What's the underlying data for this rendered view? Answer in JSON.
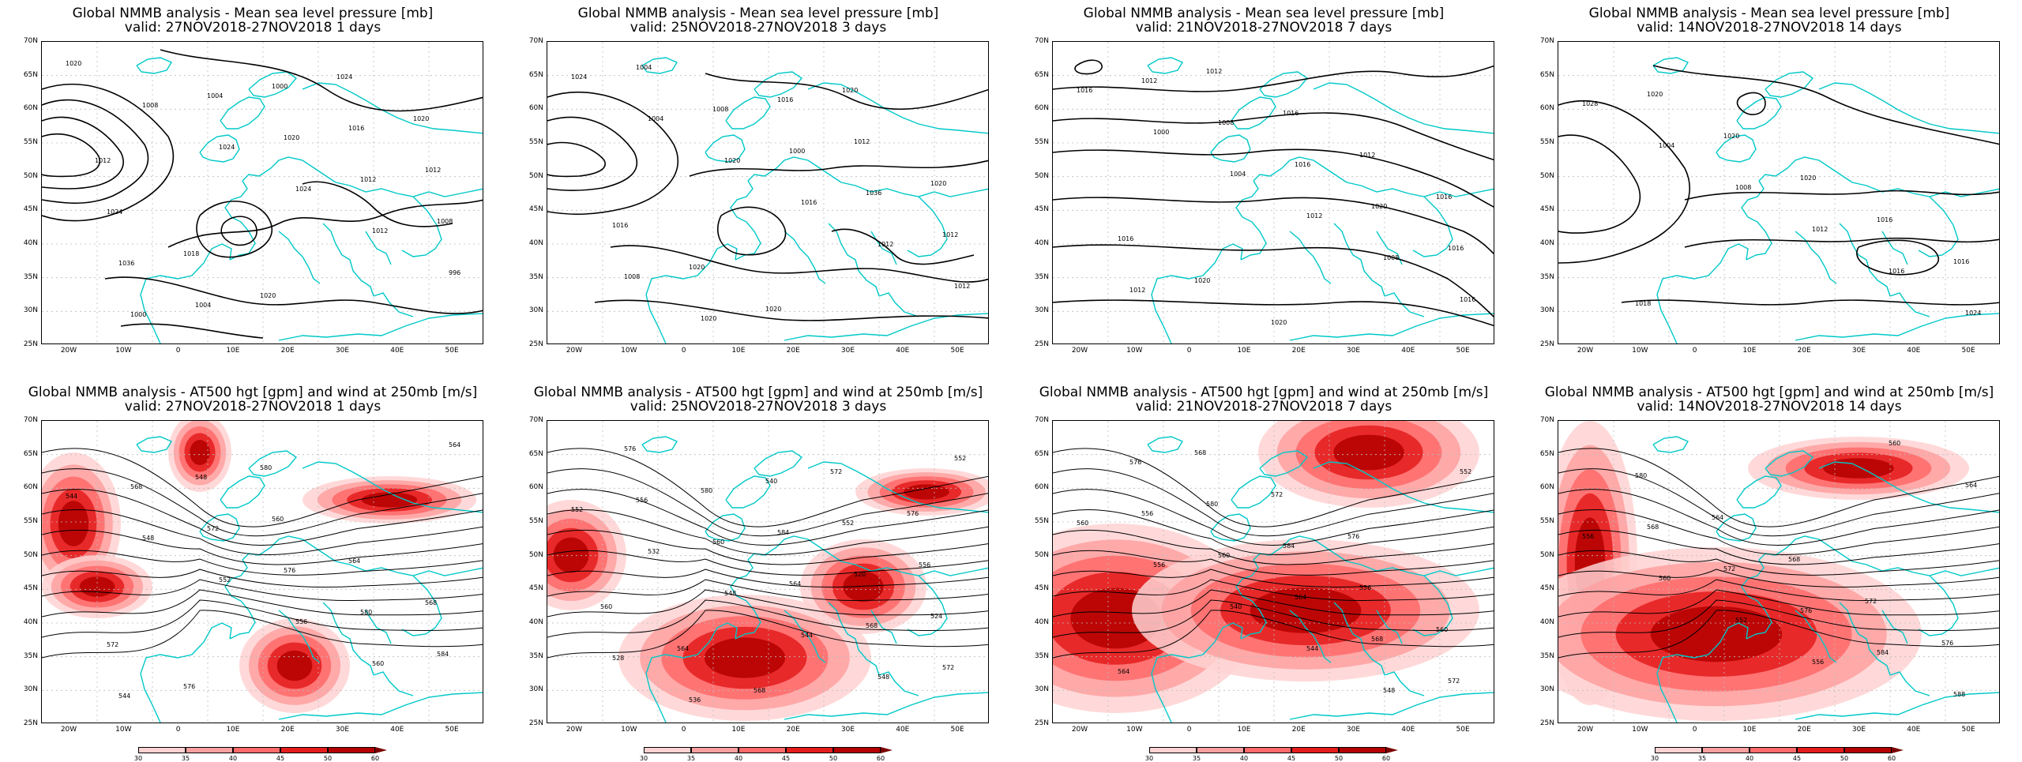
{
  "panels": [
    {
      "id": "p1",
      "title_line1": "Global NMMB analysis - Mean sea level pressure [mb]",
      "title_line2": "valid: 27NOV2018-27NOV2018  1 days",
      "kind": "mslp",
      "labels": [
        "1020",
        "1008",
        "1024",
        "1024",
        "1012",
        "996",
        "1000",
        "1004",
        "1020",
        "1012",
        "1008",
        "1036",
        "1004",
        "1000",
        "1016",
        "1012",
        "1024",
        "1018",
        "1020",
        "1024",
        "1020",
        "1012"
      ]
    },
    {
      "id": "p2",
      "title_line1": "Global NMMB analysis - Mean sea level pressure [mb]",
      "title_line2": "valid: 25NOV2018-27NOV2018  3 days",
      "kind": "mslp",
      "labels": [
        "1024",
        "1004",
        "1020",
        "1016",
        "1012",
        "1012",
        "1004",
        "1008",
        "1000",
        "1036",
        "1012",
        "1008",
        "1020",
        "1016",
        "1012",
        "1020",
        "1016",
        "1020",
        "1020",
        "1020"
      ]
    },
    {
      "id": "p3",
      "title_line1": "Global NMMB analysis - Mean sea level pressure [mb]",
      "title_line2": "valid: 21NOV2018-27NOV2018  7 days",
      "kind": "mslp",
      "labels": [
        "1016",
        "1000",
        "1004",
        "1012",
        "1008",
        "1016",
        "1012",
        "1008",
        "1016",
        "1020",
        "1016",
        "1012",
        "1012",
        "1016",
        "1012",
        "1016",
        "1016",
        "1020",
        "1020"
      ]
    },
    {
      "id": "p4",
      "title_line1": "Global NMMB analysis - Mean sea level pressure [mb]",
      "title_line2": "valid: 14NOV2018-27NOV2018  14 days",
      "kind": "mslp",
      "labels": [
        "1028",
        "1004",
        "1008",
        "1012",
        "1016",
        "1024",
        "1020",
        "1020",
        "1020",
        "1016",
        "1016",
        "1018"
      ]
    },
    {
      "id": "p5",
      "title_line1": "Global NMMB analysis - AT500 hgt [gpm] and wind at 250mb [m/s]",
      "title_line2": "valid: 27NOV2018-27NOV2018  1 days",
      "kind": "z500",
      "labels": [
        "544",
        "548",
        "552",
        "556",
        "560",
        "564",
        "568",
        "572",
        "576",
        "580",
        "584",
        "544",
        "548",
        "560",
        "564",
        "568",
        "572",
        "576",
        "580"
      ]
    },
    {
      "id": "p6",
      "title_line1": "Global NMMB analysis - AT500 hgt [gpm] and wind at 250mb [m/s]",
      "title_line2": "valid: 25NOV2018-27NOV2018  3 days",
      "kind": "z500",
      "labels": [
        "552",
        "532",
        "548",
        "544",
        "548",
        "552",
        "556",
        "560",
        "564",
        "568",
        "572",
        "576",
        "580",
        "584",
        "520",
        "524",
        "528",
        "536",
        "540",
        "552",
        "556",
        "560",
        "564",
        "568",
        "572",
        "576"
      ]
    },
    {
      "id": "p7",
      "title_line1": "Global NMMB analysis - AT500 hgt [gpm] and wind at 250mb [m/s]",
      "title_line2": "valid: 21NOV2018-27NOV2018  7 days",
      "kind": "z500",
      "labels": [
        "560",
        "556",
        "540",
        "544",
        "548",
        "552",
        "556",
        "560",
        "564",
        "568",
        "572",
        "576",
        "580",
        "584",
        "556",
        "560",
        "564",
        "568",
        "572",
        "576"
      ]
    },
    {
      "id": "p8",
      "title_line1": "Global NMMB analysis - AT500 hgt [gpm] and wind at 250mb [m/s]",
      "title_line2": "valid: 14NOV2018-27NOV2018  14 days",
      "kind": "z500",
      "labels": [
        "556",
        "560",
        "552",
        "556",
        "560",
        "564",
        "568",
        "572",
        "576",
        "584",
        "588",
        "580",
        "564",
        "568",
        "572",
        "576"
      ]
    }
  ],
  "lat_labels": [
    "70N",
    "65N",
    "60N",
    "55N",
    "50N",
    "45N",
    "40N",
    "35N",
    "30N",
    "25N"
  ],
  "lon_labels": [
    "20W",
    "10W",
    "0",
    "10E",
    "20E",
    "30E",
    "40E",
    "50E"
  ],
  "colorbar": {
    "ticks": [
      "30",
      "35",
      "40",
      "45",
      "50",
      "60"
    ],
    "colors": [
      "#ffffff",
      "#ffd2d2",
      "#ffa0a0",
      "#ff6a6a",
      "#e41c1c",
      "#b40000",
      "#7a0000"
    ]
  },
  "style": {
    "contour_color": "#000000",
    "coast_color": "#00c8c8",
    "grid_color": "#bbbbbb"
  }
}
